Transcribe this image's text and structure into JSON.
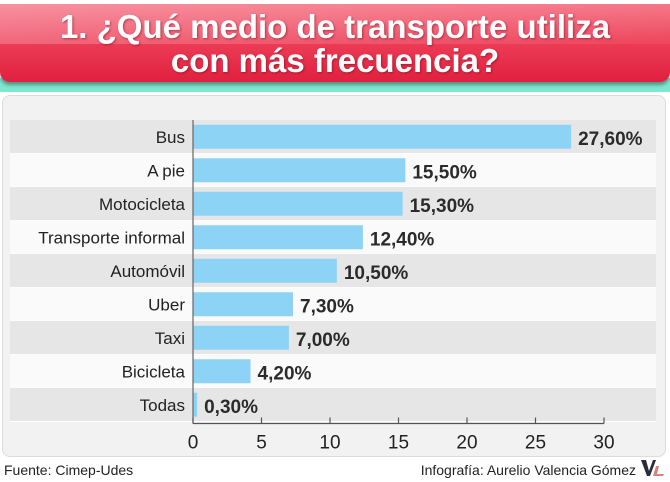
{
  "header": {
    "title_line1": "1. ¿Qué medio de transporte utiliza",
    "title_line2": "con más frecuencia?"
  },
  "footer": {
    "source": "Fuente: Cimep-Udes",
    "credit": "Infografía: Aurelio Valencia Gómez",
    "logo_icon": "vl-logo-icon"
  },
  "colors": {
    "banner": "#e8304c",
    "teal": "#7fe6cf",
    "bar": "#8dd3f5",
    "band": "#e6e6e6"
  },
  "chart_data": {
    "type": "bar",
    "orientation": "horizontal",
    "title": "1. ¿Qué medio de transporte utiliza con más frecuencia?",
    "categories": [
      "Bus",
      "A pie",
      "Motocicleta",
      "Transporte informal",
      "Automóvil",
      "Uber",
      "Taxi",
      "Bicicleta",
      "Todas"
    ],
    "values": [
      27.6,
      15.5,
      15.3,
      12.4,
      10.5,
      7.3,
      7.0,
      4.2,
      0.3
    ],
    "value_labels": [
      "27,60%",
      "15,50%",
      "15,30%",
      "12,40%",
      "10,50%",
      "7,30%",
      "7,00%",
      "4,20%",
      "0,30%"
    ],
    "xlabel": "",
    "ylabel": "",
    "xlim": [
      0,
      30
    ],
    "xticks": [
      0,
      5,
      10,
      15,
      20,
      25,
      30
    ],
    "xtick_labels": [
      "0",
      "5",
      "10",
      "15",
      "20",
      "25",
      "30"
    ],
    "grid": false,
    "legend": "none"
  }
}
